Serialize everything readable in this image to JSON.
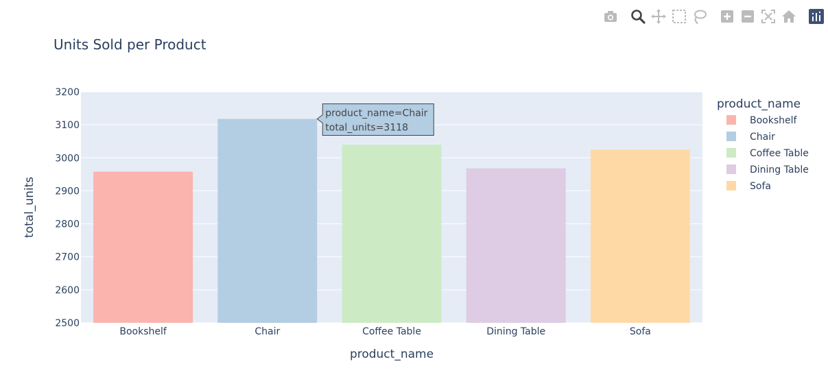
{
  "modebar": {
    "buttons": [
      {
        "name": "camera-icon",
        "title": "Download plot as a png"
      },
      {
        "name": "zoom-icon",
        "title": "Zoom"
      },
      {
        "name": "pan-icon",
        "title": "Pan"
      },
      {
        "name": "box-select-icon",
        "title": "Box Select"
      },
      {
        "name": "lasso-select-icon",
        "title": "Lasso Select"
      },
      {
        "name": "zoom-in-icon",
        "title": "Zoom in"
      },
      {
        "name": "zoom-out-icon",
        "title": "Zoom out"
      },
      {
        "name": "autoscale-icon",
        "title": "Autoscale"
      },
      {
        "name": "reset-axes-icon",
        "title": "Reset axes"
      },
      {
        "name": "plotly-logo-icon",
        "title": "Produced with Plotly"
      }
    ],
    "colors": {
      "icon": "#bbbbbb",
      "active": "#444444",
      "logo_bg": "#3f4f75"
    }
  },
  "chart_data": {
    "type": "bar",
    "title": "Units Sold per Product",
    "xlabel": "product_name",
    "ylabel": "total_units",
    "categories": [
      "Bookshelf",
      "Chair",
      "Coffee Table",
      "Dining Table",
      "Sofa"
    ],
    "values": [
      2958,
      3118,
      3040,
      2968,
      3025
    ],
    "colors": [
      "#fbb4ae",
      "#b3cde3",
      "#ccebc5",
      "#decbe4",
      "#fed9a6"
    ],
    "ylim": [
      2500,
      3200
    ],
    "yticks": [
      2500,
      2600,
      2700,
      2800,
      2900,
      3000,
      3100,
      3200
    ],
    "grid": true,
    "legend": {
      "title": "product_name",
      "position": "right",
      "entries": [
        "Bookshelf",
        "Chair",
        "Coffee Table",
        "Dining Table",
        "Sofa"
      ]
    },
    "tooltip": {
      "category": "Chair",
      "lines": [
        "product_name=Chair",
        "total_units=3118"
      ]
    },
    "plot_bg": "#e5ecf6",
    "text_color": "#2a3f5f"
  }
}
